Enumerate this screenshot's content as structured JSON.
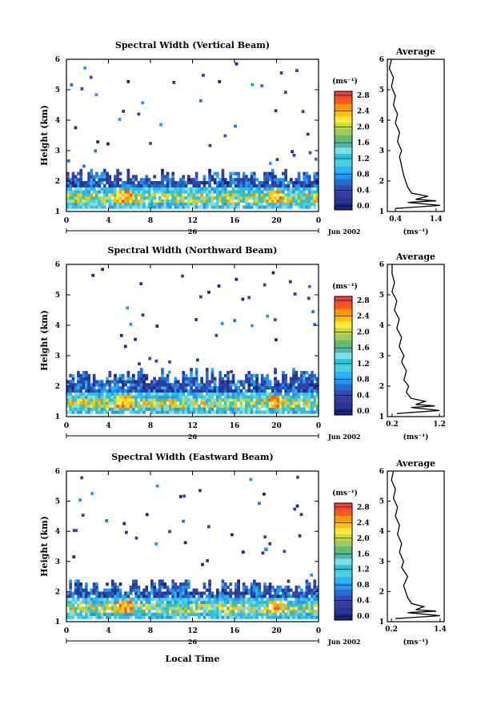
{
  "figure": {
    "xlabel": "Local Time",
    "date_label": "Jun 2002",
    "day_label": "26",
    "cbar_unit": "(ms⁻¹)",
    "avg_title": "Average",
    "avg_unit": "(ms⁻¹)",
    "ylabel": "Height (km)"
  },
  "colormap": [
    "#1a237e",
    "#283593",
    "#303f9f",
    "#3949ab",
    "#1e6fd9",
    "#2196f3",
    "#29b6f6",
    "#4dd0e1",
    "#26c6da",
    "#80deea",
    "#4db6ac",
    "#66bb6a",
    "#9ccc65",
    "#cddc39",
    "#ffeb3b",
    "#ffc107",
    "#ff9800",
    "#ff5722",
    "#f44336"
  ],
  "chart_data": [
    {
      "type": "heatmap",
      "title": "Spectral Width (Vertical Beam)",
      "x_ticks": [
        "0",
        "4",
        "8",
        "12",
        "16",
        "20",
        "0"
      ],
      "y_ticks": [
        "1",
        "2",
        "3",
        "4",
        "5",
        "6"
      ],
      "xlim": [
        0,
        24
      ],
      "ylim": [
        1,
        6
      ],
      "cbar_ticks": [
        "0.0",
        "0.4",
        "0.8",
        "1.2",
        "1.6",
        "2.0",
        "2.4",
        "2.8"
      ],
      "cbar_range": [
        0,
        3.0
      ],
      "avg_x_ticks": [
        "0.4",
        "1.4"
      ],
      "avg_xlim": [
        0.2,
        1.6
      ],
      "avg_profile": {
        "height": [
          1.1,
          1.2,
          1.3,
          1.35,
          1.4,
          1.5,
          1.6,
          1.8,
          2.0,
          2.2,
          2.5,
          2.8,
          3.0,
          3.3,
          3.6,
          3.9,
          4.2,
          4.5,
          4.8,
          5.1,
          5.4,
          5.7,
          6.0
        ],
        "width": [
          0.4,
          1.5,
          0.7,
          1.4,
          0.9,
          1.2,
          0.8,
          0.7,
          0.65,
          0.6,
          0.55,
          0.5,
          0.55,
          0.45,
          0.5,
          0.4,
          0.45,
          0.35,
          0.4,
          0.3,
          0.35,
          0.25,
          0.3
        ]
      }
    },
    {
      "type": "heatmap",
      "title": "Spectral Width (Northward Beam)",
      "x_ticks": [
        "0",
        "4",
        "8",
        "12",
        "16",
        "20",
        "0"
      ],
      "y_ticks": [
        "1",
        "2",
        "3",
        "4",
        "5",
        "6"
      ],
      "xlim": [
        0,
        24
      ],
      "ylim": [
        1,
        6
      ],
      "cbar_ticks": [
        "0.0",
        "0.4",
        "0.8",
        "1.2",
        "1.6",
        "2.0",
        "2.4",
        "2.8"
      ],
      "cbar_range": [
        0,
        3.0
      ],
      "avg_x_ticks": [
        "0.2",
        "1.2"
      ],
      "avg_xlim": [
        0.1,
        1.3
      ],
      "avg_profile": {
        "height": [
          1.1,
          1.2,
          1.3,
          1.35,
          1.4,
          1.5,
          1.6,
          1.8,
          2.0,
          2.2,
          2.5,
          2.8,
          3.0,
          3.3,
          3.6,
          3.9,
          4.2,
          4.5,
          4.8,
          5.1,
          5.4,
          5.7,
          6.0
        ],
        "width": [
          0.3,
          1.2,
          0.6,
          1.1,
          0.7,
          0.9,
          0.6,
          0.5,
          0.55,
          0.45,
          0.5,
          0.4,
          0.45,
          0.35,
          0.4,
          0.3,
          0.35,
          0.25,
          0.3,
          0.2,
          0.25,
          0.2,
          0.2
        ]
      }
    },
    {
      "type": "heatmap",
      "title": "Spectral Width (Eastward Beam)",
      "x_ticks": [
        "0",
        "4",
        "8",
        "12",
        "16",
        "20",
        "0"
      ],
      "y_ticks": [
        "1",
        "2",
        "3",
        "4",
        "5",
        "6"
      ],
      "xlim": [
        0,
        24
      ],
      "ylim": [
        1,
        6
      ],
      "cbar_ticks": [
        "0.0",
        "0.4",
        "0.8",
        "1.2",
        "1.6",
        "2.0",
        "2.4",
        "2.8"
      ],
      "cbar_range": [
        0,
        3.0
      ],
      "avg_x_ticks": [
        "0.2",
        "1.4"
      ],
      "avg_xlim": [
        0.1,
        1.5
      ],
      "avg_profile": {
        "height": [
          1.1,
          1.2,
          1.3,
          1.35,
          1.4,
          1.5,
          1.6,
          1.8,
          2.0,
          2.2,
          2.5,
          2.8,
          3.0,
          3.3,
          3.6,
          3.9,
          4.2,
          4.5,
          4.8,
          5.1,
          5.4,
          5.7,
          6.0
        ],
        "width": [
          0.3,
          1.4,
          0.6,
          1.3,
          0.8,
          1.0,
          0.7,
          0.6,
          0.55,
          0.5,
          0.6,
          0.45,
          0.5,
          0.4,
          0.45,
          0.35,
          0.4,
          0.3,
          0.35,
          0.25,
          0.3,
          0.2,
          0.25
        ]
      }
    }
  ]
}
